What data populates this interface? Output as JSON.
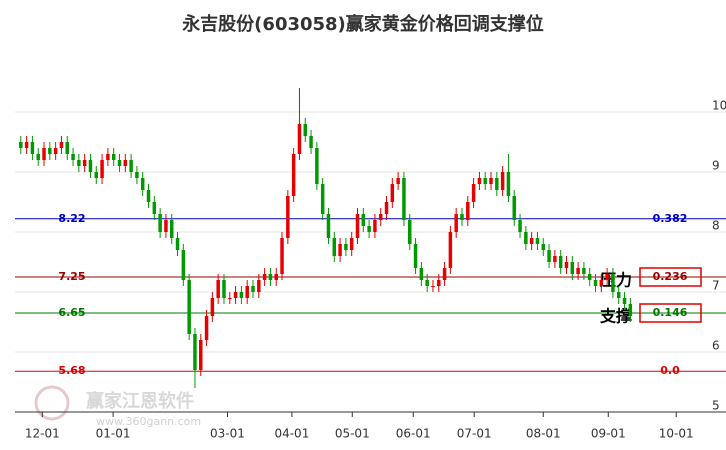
{
  "chart_data": {
    "type": "candlestick",
    "title": "永吉股份(603058)赢家黄金价格回调支撑位",
    "watermark": [
      "赢家江恩软件",
      "www.360gann.com"
    ],
    "up_color": "#e60000",
    "down_color": "#009900",
    "xlim": [
      0,
      118
    ],
    "ylim": [
      5,
      11.2
    ],
    "yticks": [
      5,
      6,
      7,
      8,
      9,
      10
    ],
    "xticks": [
      {
        "value": 4.7,
        "label": "12-01"
      },
      {
        "value": 16.9,
        "label": "01-01"
      },
      {
        "value": 36.6,
        "label": "03-01"
      },
      {
        "value": 47.7,
        "label": "04-01"
      },
      {
        "value": 58.1,
        "label": "05-01"
      },
      {
        "value": 68.6,
        "label": "06-01"
      },
      {
        "value": 79.1,
        "label": "07-01"
      },
      {
        "value": 91.0,
        "label": "08-01"
      },
      {
        "value": 102.2,
        "label": "09-01"
      },
      {
        "value": 113.9,
        "label": "10-01"
      }
    ],
    "grid": true,
    "x": [
      1,
      2,
      3,
      4,
      5,
      6,
      7,
      8,
      9,
      10,
      11,
      12,
      13,
      14,
      15,
      16,
      17,
      18,
      19,
      20,
      21,
      22,
      23,
      24,
      25,
      26,
      27,
      28,
      29,
      30,
      31,
      32,
      33,
      34,
      35,
      36,
      37,
      38,
      39,
      40,
      41,
      42,
      43,
      44,
      45,
      46,
      47,
      48,
      49,
      50,
      51,
      52,
      53,
      54,
      55,
      56,
      57,
      58,
      59,
      60,
      61,
      62,
      63,
      64,
      65,
      66,
      67,
      68,
      69,
      70,
      71,
      72,
      73,
      74,
      75,
      76,
      77,
      78,
      79,
      80,
      81,
      82,
      83,
      84,
      85,
      86,
      87,
      88,
      89,
      90,
      91,
      92,
      93,
      94,
      95,
      96,
      97,
      98,
      99,
      100,
      101,
      102,
      103,
      104,
      105,
      106
    ],
    "open": [
      9.5,
      9.4,
      9.5,
      9.3,
      9.2,
      9.4,
      9.3,
      9.4,
      9.5,
      9.3,
      9.2,
      9.1,
      9.2,
      9.0,
      8.9,
      9.2,
      9.3,
      9.2,
      9.1,
      9.2,
      9.0,
      8.9,
      8.7,
      8.5,
      8.3,
      8.0,
      8.2,
      7.9,
      7.7,
      7.2,
      6.3,
      5.7,
      6.2,
      6.6,
      6.9,
      7.2,
      6.9,
      6.9,
      7.0,
      6.9,
      7.1,
      7.0,
      7.2,
      7.3,
      7.2,
      7.3,
      7.9,
      8.6,
      9.3,
      9.8,
      9.6,
      9.4,
      8.8,
      8.3,
      7.9,
      7.6,
      7.8,
      7.7,
      7.9,
      8.3,
      8.1,
      8.0,
      8.2,
      8.3,
      8.5,
      8.8,
      8.9,
      8.2,
      7.8,
      7.4,
      7.2,
      7.1,
      7.1,
      7.2,
      7.4,
      8.0,
      8.3,
      8.2,
      8.5,
      8.8,
      8.9,
      8.8,
      8.9,
      8.7,
      9.0,
      8.6,
      8.2,
      8.0,
      7.8,
      7.9,
      7.8,
      7.7,
      7.5,
      7.6,
      7.4,
      7.5,
      7.3,
      7.4,
      7.3,
      7.2,
      7.1,
      7.2,
      7.3,
      7.0,
      6.9,
      6.8
    ],
    "high": [
      9.6,
      9.6,
      9.6,
      9.4,
      9.5,
      9.5,
      9.5,
      9.6,
      9.6,
      9.4,
      9.3,
      9.3,
      9.3,
      9.1,
      9.3,
      9.4,
      9.4,
      9.3,
      9.3,
      9.3,
      9.1,
      9.0,
      8.8,
      8.6,
      8.4,
      8.3,
      8.3,
      8.0,
      7.8,
      7.3,
      6.4,
      6.3,
      6.7,
      7.0,
      7.3,
      7.3,
      7.0,
      7.1,
      7.1,
      7.2,
      7.2,
      7.3,
      7.4,
      7.4,
      7.4,
      8.0,
      8.7,
      9.4,
      10.4,
      9.9,
      9.7,
      9.5,
      8.9,
      8.4,
      8.0,
      7.9,
      7.9,
      8.0,
      8.4,
      8.4,
      8.2,
      8.3,
      8.4,
      8.6,
      8.9,
      9.0,
      9.0,
      8.3,
      7.9,
      7.5,
      7.3,
      7.2,
      7.3,
      7.5,
      8.1,
      8.4,
      8.4,
      8.6,
      8.9,
      9.0,
      9.0,
      9.0,
      9.0,
      9.1,
      9.3,
      8.7,
      8.3,
      8.1,
      8.0,
      8.0,
      7.9,
      7.8,
      7.7,
      7.7,
      7.6,
      7.6,
      7.5,
      7.5,
      7.4,
      7.3,
      7.3,
      7.4,
      7.4,
      7.1,
      7.0,
      6.9
    ],
    "low": [
      9.3,
      9.3,
      9.2,
      9.1,
      9.1,
      9.2,
      9.2,
      9.3,
      9.2,
      9.1,
      9.0,
      9.0,
      8.9,
      8.8,
      8.8,
      9.1,
      9.1,
      9.0,
      9.0,
      8.9,
      8.8,
      8.6,
      8.4,
      8.2,
      7.9,
      7.9,
      7.8,
      7.6,
      7.1,
      6.2,
      5.4,
      5.6,
      6.1,
      6.5,
      6.8,
      6.8,
      6.8,
      6.8,
      6.8,
      6.8,
      6.9,
      6.9,
      7.1,
      7.1,
      7.1,
      7.2,
      7.8,
      8.5,
      9.2,
      9.5,
      9.3,
      8.7,
      8.2,
      7.8,
      7.5,
      7.5,
      7.6,
      7.6,
      7.8,
      8.0,
      7.9,
      7.9,
      8.1,
      8.2,
      8.4,
      8.7,
      8.1,
      7.7,
      7.3,
      7.1,
      7.0,
      7.0,
      7.0,
      7.1,
      7.3,
      7.9,
      8.1,
      8.1,
      8.4,
      8.7,
      8.7,
      8.7,
      8.6,
      8.6,
      8.5,
      8.1,
      7.9,
      7.7,
      7.7,
      7.7,
      7.6,
      7.4,
      7.4,
      7.3,
      7.3,
      7.2,
      7.2,
      7.2,
      7.1,
      7.0,
      7.0,
      7.1,
      6.9,
      6.8,
      6.7,
      6.5
    ],
    "close": [
      9.4,
      9.5,
      9.3,
      9.2,
      9.4,
      9.3,
      9.4,
      9.5,
      9.3,
      9.2,
      9.1,
      9.2,
      9.0,
      8.9,
      9.2,
      9.3,
      9.2,
      9.1,
      9.2,
      9.0,
      8.9,
      8.7,
      8.5,
      8.3,
      8.0,
      8.2,
      7.9,
      7.7,
      7.2,
      6.3,
      5.7,
      6.2,
      6.6,
      6.9,
      7.2,
      6.9,
      6.9,
      7.0,
      6.9,
      7.1,
      7.0,
      7.2,
      7.3,
      7.2,
      7.3,
      7.9,
      8.6,
      9.3,
      9.8,
      9.6,
      9.4,
      8.8,
      8.3,
      7.9,
      7.6,
      7.8,
      7.7,
      7.9,
      8.3,
      8.1,
      8.0,
      8.2,
      8.3,
      8.5,
      8.8,
      8.9,
      8.2,
      7.8,
      7.4,
      7.2,
      7.1,
      7.1,
      7.2,
      7.4,
      8.0,
      8.3,
      8.2,
      8.5,
      8.8,
      8.9,
      8.8,
      8.9,
      8.7,
      9.0,
      8.6,
      8.2,
      8.0,
      7.8,
      7.9,
      7.8,
      7.7,
      7.5,
      7.6,
      7.4,
      7.5,
      7.3,
      7.4,
      7.3,
      7.2,
      7.1,
      7.2,
      7.3,
      7.0,
      6.9,
      6.8,
      6.6
    ],
    "levels": [
      {
        "price": 8.22,
        "ratio": "0.382",
        "color": "#0000cc"
      },
      {
        "price": 7.25,
        "ratio": "0.236",
        "color": "#990000",
        "annotation": "压力"
      },
      {
        "price": 6.65,
        "ratio": "0.146",
        "color": "#007700",
        "annotation": "支撑"
      },
      {
        "price": 5.68,
        "ratio": "0.0",
        "color": "#dd0000"
      }
    ]
  }
}
